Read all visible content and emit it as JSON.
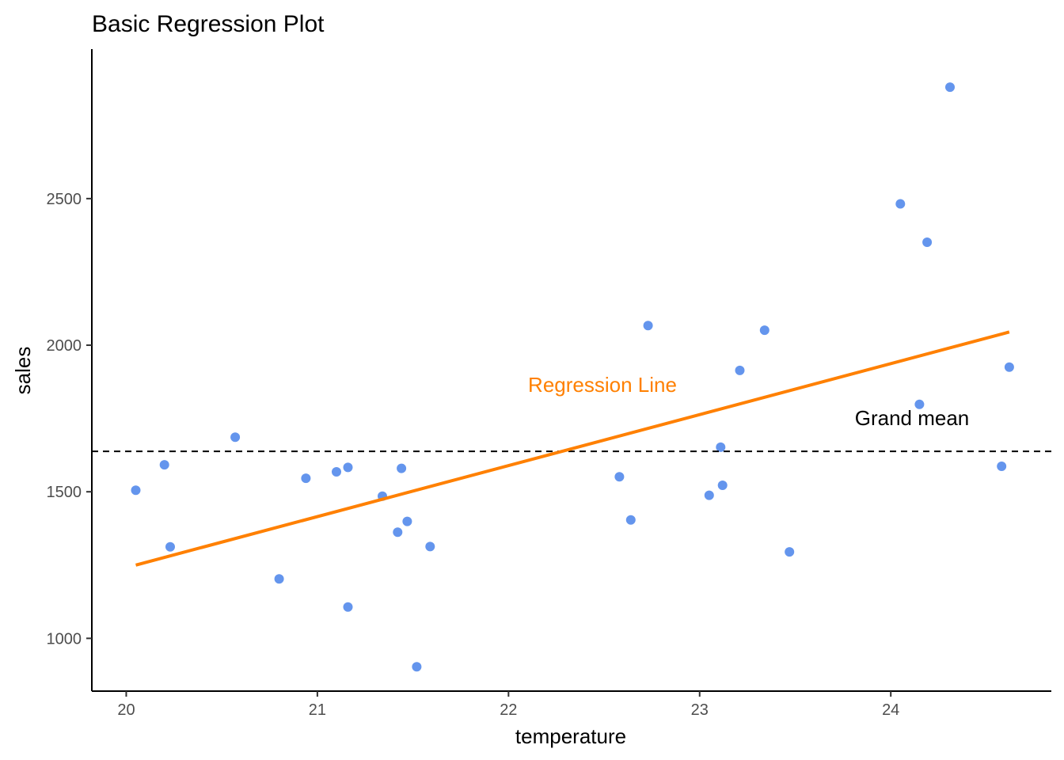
{
  "chart_data": {
    "type": "scatter",
    "title": "Basic Regression Plot",
    "xlabel": "temperature",
    "ylabel": "sales",
    "xlim": [
      19.82,
      24.84
    ],
    "ylim": [
      820,
      3010
    ],
    "x_ticks": [
      20,
      21,
      22,
      23,
      24
    ],
    "y_ticks": [
      1000,
      1500,
      2000,
      2500
    ],
    "grid": false,
    "point_color": "#6495ED",
    "points": [
      {
        "x": 20.05,
        "y": 1505
      },
      {
        "x": 20.2,
        "y": 1592
      },
      {
        "x": 20.23,
        "y": 1312
      },
      {
        "x": 20.57,
        "y": 1686
      },
      {
        "x": 20.8,
        "y": 1203
      },
      {
        "x": 20.94,
        "y": 1546
      },
      {
        "x": 21.1,
        "y": 1568
      },
      {
        "x": 21.16,
        "y": 1583
      },
      {
        "x": 21.16,
        "y": 1107
      },
      {
        "x": 21.34,
        "y": 1485
      },
      {
        "x": 21.42,
        "y": 1362
      },
      {
        "x": 21.44,
        "y": 1580
      },
      {
        "x": 21.47,
        "y": 1399
      },
      {
        "x": 21.52,
        "y": 903
      },
      {
        "x": 21.59,
        "y": 1313
      },
      {
        "x": 22.58,
        "y": 1551
      },
      {
        "x": 22.64,
        "y": 1404
      },
      {
        "x": 22.73,
        "y": 2067
      },
      {
        "x": 23.05,
        "y": 1488
      },
      {
        "x": 23.11,
        "y": 1652
      },
      {
        "x": 23.12,
        "y": 1522
      },
      {
        "x": 23.21,
        "y": 1914
      },
      {
        "x": 23.34,
        "y": 2051
      },
      {
        "x": 23.47,
        "y": 1295
      },
      {
        "x": 24.05,
        "y": 2482
      },
      {
        "x": 24.15,
        "y": 1798
      },
      {
        "x": 24.19,
        "y": 2351
      },
      {
        "x": 24.31,
        "y": 2880
      },
      {
        "x": 24.58,
        "y": 1587
      },
      {
        "x": 24.62,
        "y": 1925
      }
    ],
    "regression_line": {
      "label": "Regression Line",
      "color": "#FF8000",
      "x": [
        20.05,
        24.62
      ],
      "y": [
        1250,
        2045
      ]
    },
    "reference_line": {
      "label": "Grand mean",
      "color": "#000000",
      "y": 1638,
      "style": "dashed"
    }
  }
}
